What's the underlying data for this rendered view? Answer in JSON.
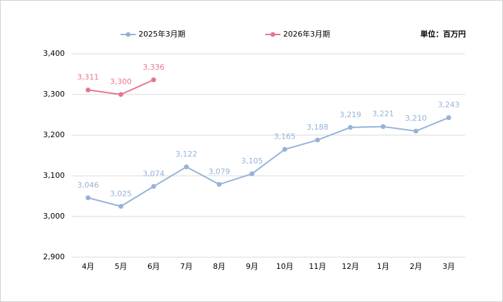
{
  "chart_data": {
    "type": "line",
    "unit_label": "単位：百万円",
    "categories": [
      "4月",
      "5月",
      "6月",
      "7月",
      "8月",
      "9月",
      "10月",
      "11月",
      "12月",
      "1月",
      "2月",
      "3月"
    ],
    "series": [
      {
        "name": "2025年3月期",
        "color": "#95b3d7",
        "values": [
          3046,
          3025,
          3074,
          3122,
          3079,
          3105,
          3165,
          3188,
          3219,
          3221,
          3210,
          3243
        ],
        "value_labels": [
          "3,046",
          "3,025",
          "3,074",
          "3,122",
          "3,079",
          "3,105",
          "3,165",
          "3,188",
          "3,219",
          "3,221",
          "3,210",
          "3,243"
        ]
      },
      {
        "name": "2026年3月期",
        "color": "#e8758d",
        "values": [
          3311,
          3300,
          3336,
          null,
          null,
          null,
          null,
          null,
          null,
          null,
          null,
          null
        ],
        "value_labels": [
          "3,311",
          "3,300",
          "3,336",
          null,
          null,
          null,
          null,
          null,
          null,
          null,
          null,
          null
        ]
      }
    ],
    "ylim": [
      2900,
      3400
    ],
    "yticks": [
      {
        "value": 2900,
        "label": "2,900"
      },
      {
        "value": 3000,
        "label": "3,000"
      },
      {
        "value": 3100,
        "label": "3,100"
      },
      {
        "value": 3200,
        "label": "3,200"
      },
      {
        "value": 3300,
        "label": "3,300"
      },
      {
        "value": 3400,
        "label": "3,400"
      }
    ],
    "grid": true
  }
}
